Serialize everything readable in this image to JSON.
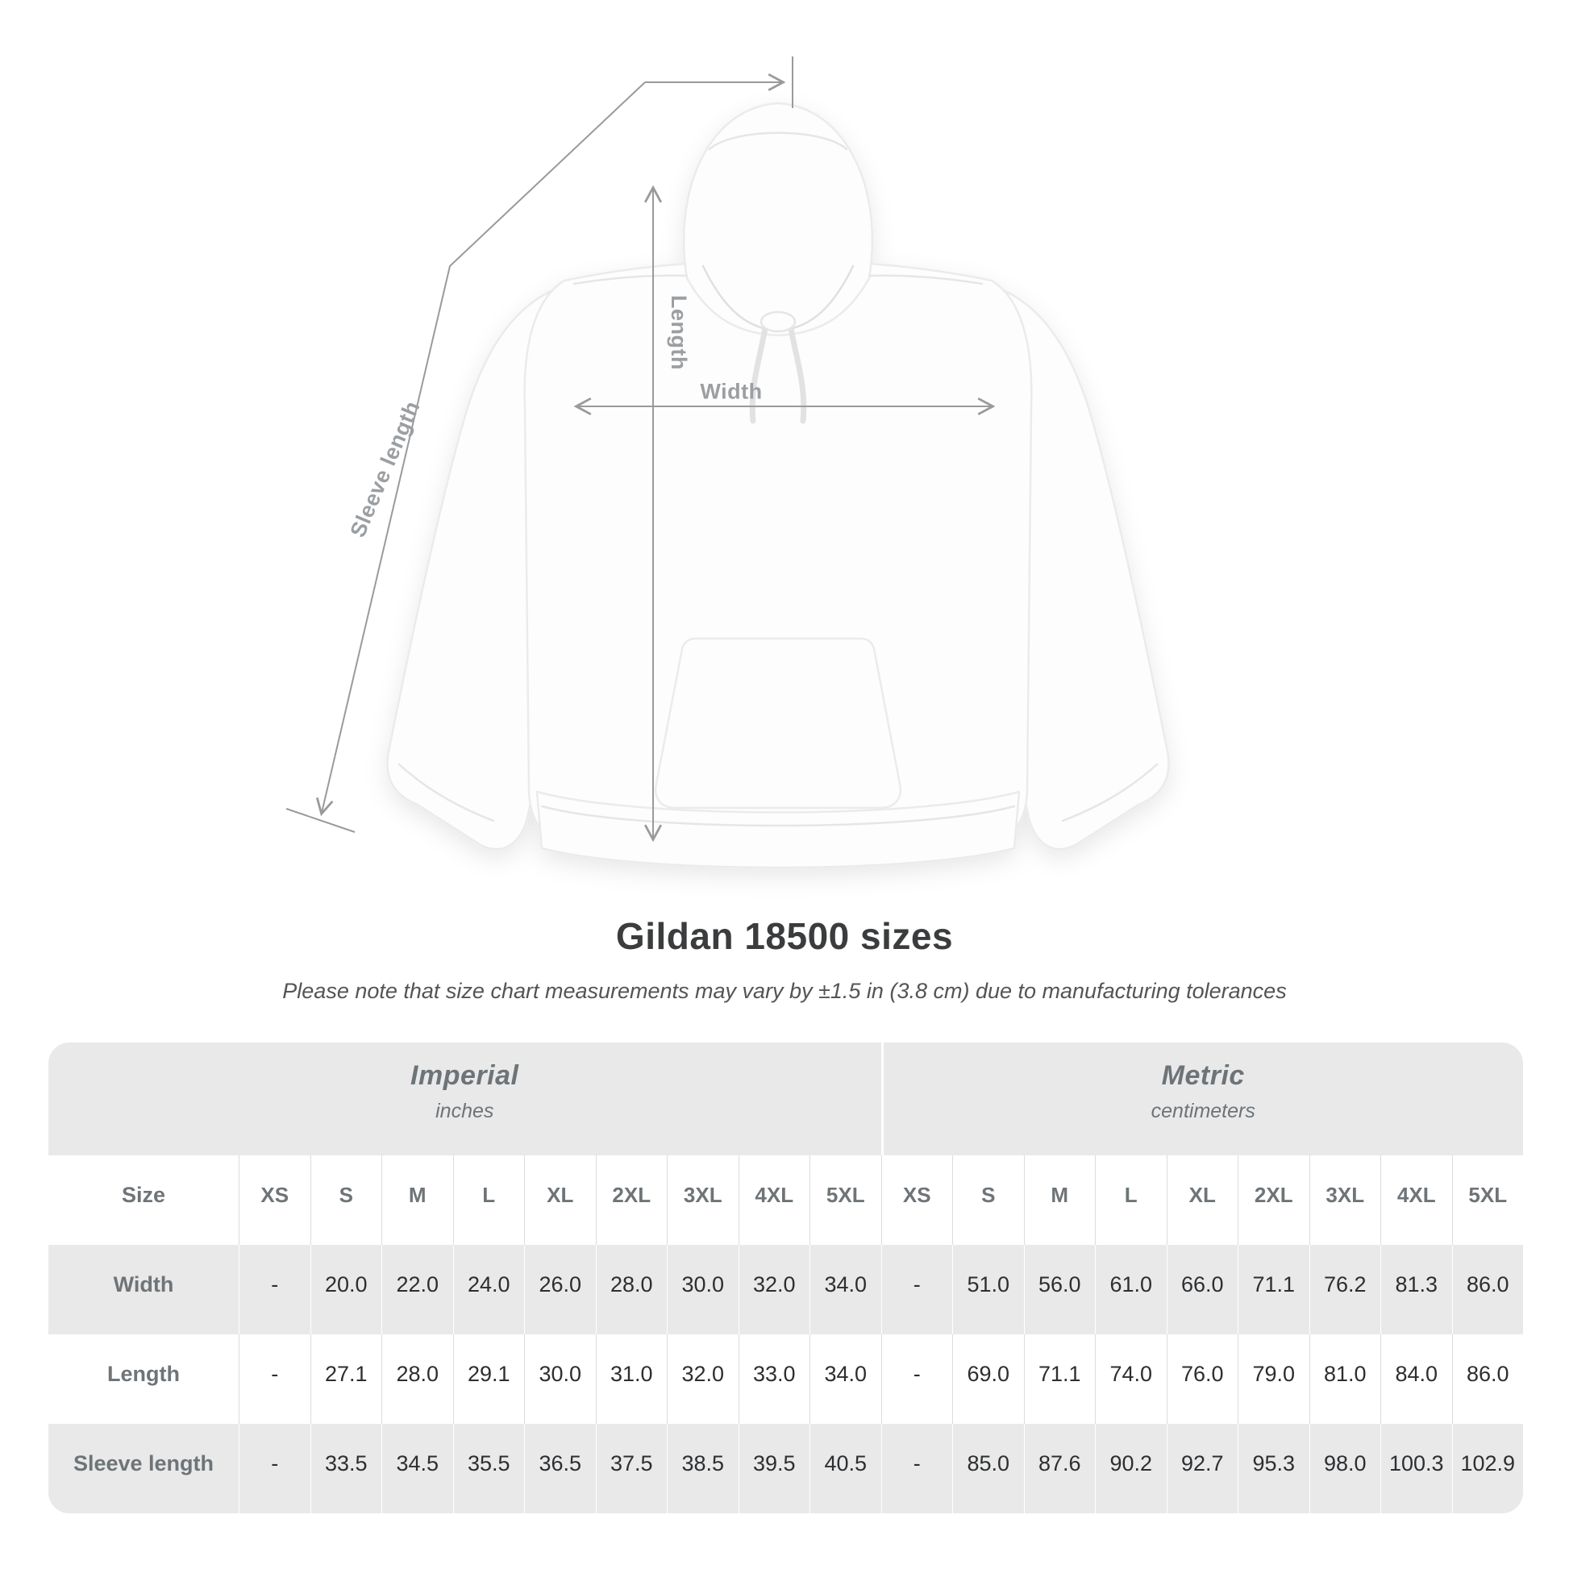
{
  "diagram": {
    "length_label": "Length",
    "width_label": "Width",
    "sleeve_label": "Sleeve length"
  },
  "title": "Gildan 18500 sizes",
  "subtitle": "Please note that size chart measurements may vary by ±1.5 in (3.8 cm) due to manufacturing tolerances",
  "table": {
    "unit_groups": [
      {
        "label": "Imperial",
        "sublabel": "inches"
      },
      {
        "label": "Metric",
        "sublabel": "centimeters"
      }
    ],
    "corner_label": "Size",
    "sizes": [
      "XS",
      "S",
      "M",
      "L",
      "XL",
      "2XL",
      "3XL",
      "4XL",
      "5XL"
    ],
    "rows": [
      {
        "label": "Width",
        "imperial": [
          "-",
          "20.0",
          "22.0",
          "24.0",
          "26.0",
          "28.0",
          "30.0",
          "32.0",
          "34.0"
        ],
        "metric": [
          "-",
          "51.0",
          "56.0",
          "61.0",
          "66.0",
          "71.1",
          "76.2",
          "81.3",
          "86.0"
        ]
      },
      {
        "label": "Length",
        "imperial": [
          "-",
          "27.1",
          "28.0",
          "29.1",
          "30.0",
          "31.0",
          "32.0",
          "33.0",
          "34.0"
        ],
        "metric": [
          "-",
          "69.0",
          "71.1",
          "74.0",
          "76.0",
          "79.0",
          "81.0",
          "84.0",
          "86.0"
        ]
      },
      {
        "label": "Sleeve length",
        "imperial": [
          "-",
          "33.5",
          "34.5",
          "35.5",
          "36.5",
          "37.5",
          "38.5",
          "39.5",
          "40.5"
        ],
        "metric": [
          "-",
          "85.0",
          "87.6",
          "90.2",
          "92.7",
          "95.3",
          "98.0",
          "100.3",
          "102.9"
        ]
      }
    ]
  },
  "colors": {
    "measurement_line": "#9a9a9a",
    "measurement_label": "#9b9fa2",
    "title_text": "#3a3c3d",
    "table_band": "#e9e9ea",
    "row_stripe": "#e9e9ea",
    "header_text": "#6e7477",
    "value_text": "#2c2e2f"
  }
}
